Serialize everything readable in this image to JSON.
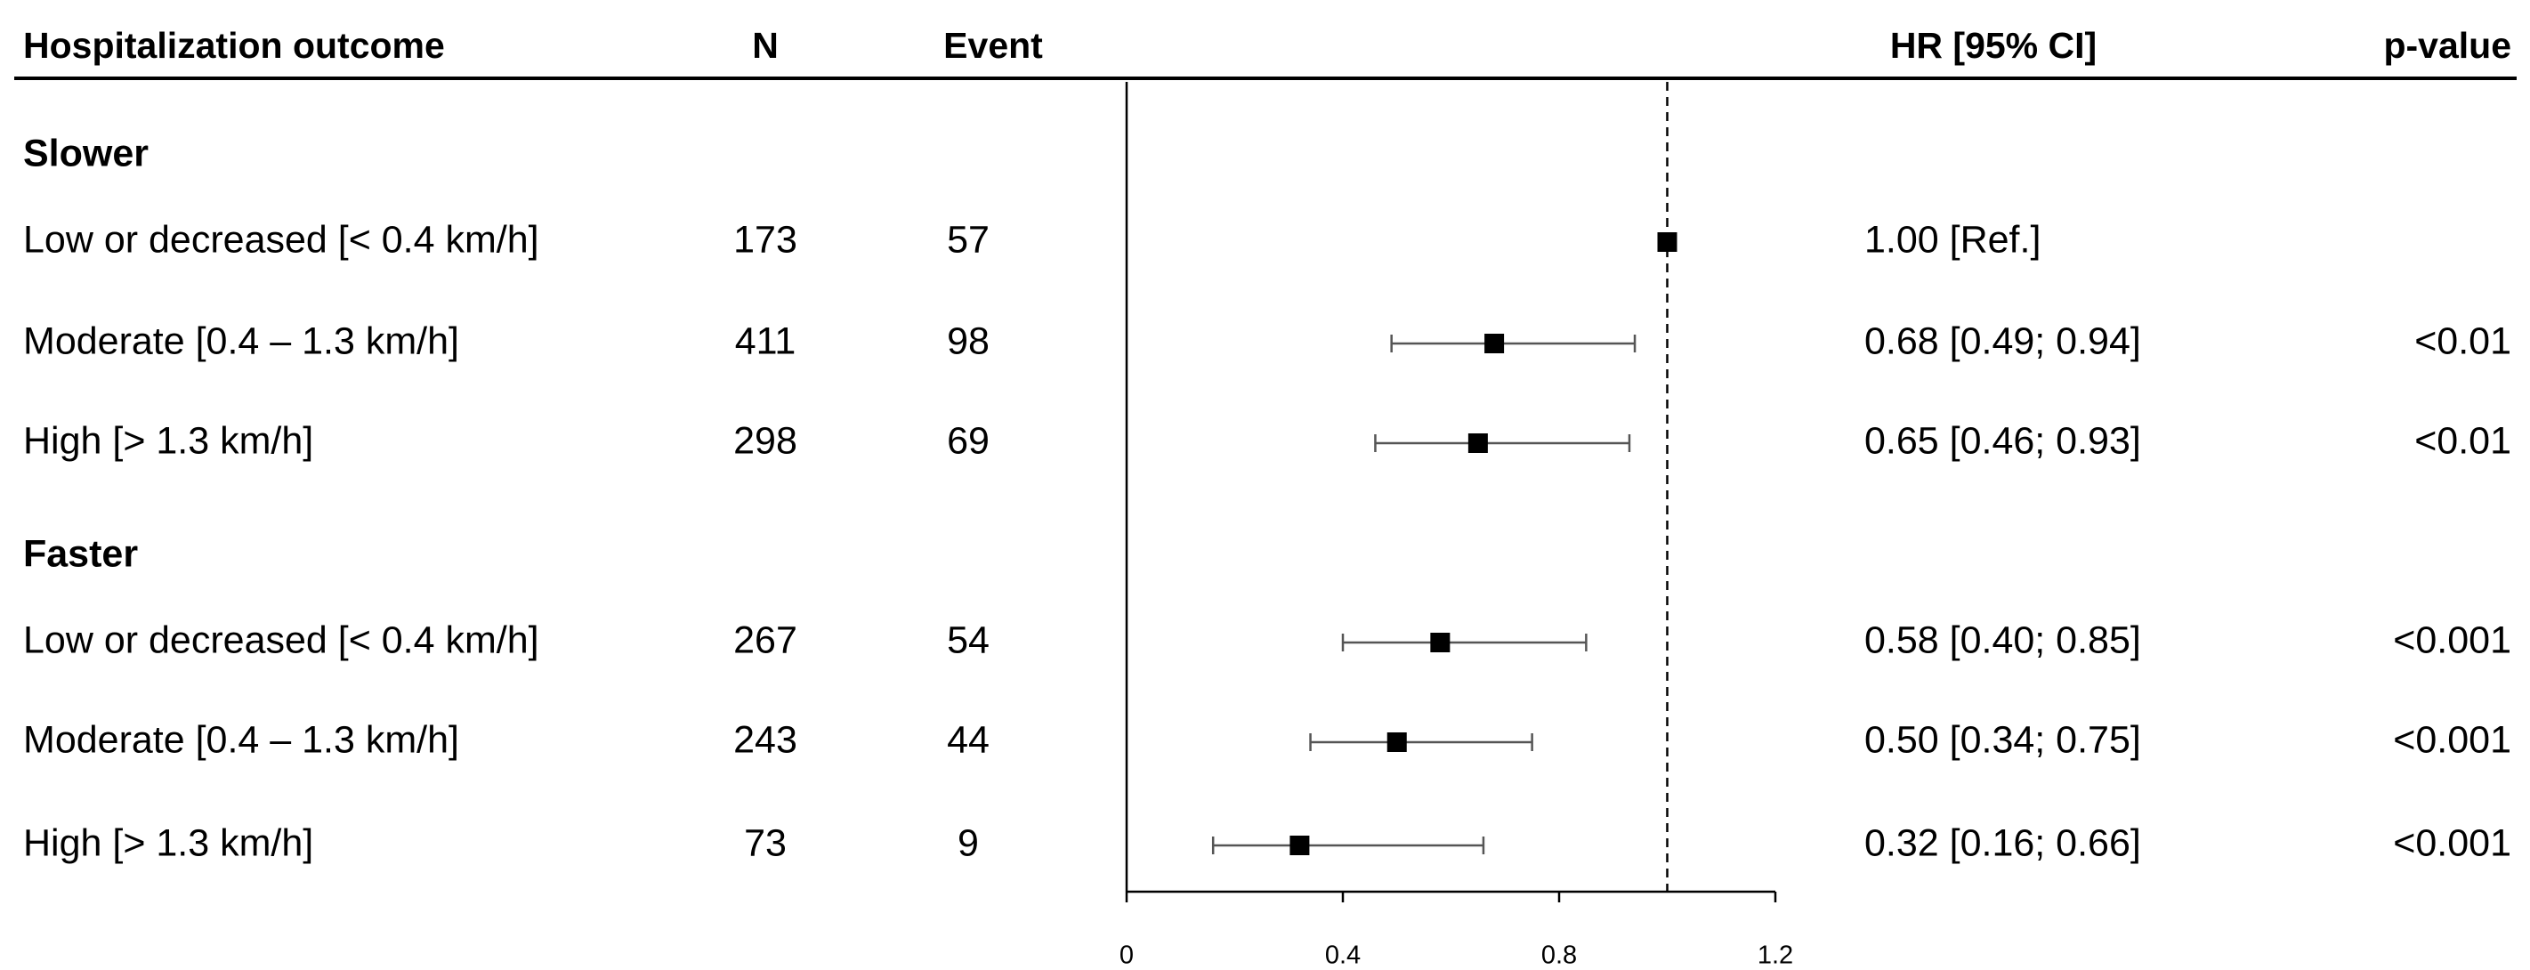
{
  "chart_data": {
    "type": "forest",
    "title": "",
    "columns": {
      "outcome": "Hospitalization outcome",
      "n": "N",
      "event": "Event",
      "hr": "HR [95% CI]",
      "p": "p-value"
    },
    "groups": [
      {
        "label": "Slower",
        "rows": [
          {
            "label": "Low or decreased [< 0.4 km/h]",
            "n": "173",
            "event": "57",
            "hr_text": "1.00 [Ref.]",
            "p": "",
            "hr": 1.0,
            "lo": null,
            "hi": null
          },
          {
            "label": "Moderate [0.4 – 1.3 km/h]",
            "n": "411",
            "event": "98",
            "hr_text": "0.68 [0.49; 0.94]",
            "p": "<0.01",
            "hr": 0.68,
            "lo": 0.49,
            "hi": 0.94
          },
          {
            "label": "High [> 1.3 km/h]",
            "n": "298",
            "event": "69",
            "hr_text": "0.65 [0.46; 0.93]",
            "p": "<0.01",
            "hr": 0.65,
            "lo": 0.46,
            "hi": 0.93
          }
        ]
      },
      {
        "label": "Faster",
        "rows": [
          {
            "label": "Low or decreased [< 0.4 km/h]",
            "n": "267",
            "event": "54",
            "hr_text": "0.58 [0.40; 0.85]",
            "p": "<0.001",
            "hr": 0.58,
            "lo": 0.4,
            "hi": 0.85
          },
          {
            "label": "Moderate [0.4 – 1.3 km/h]",
            "n": "243",
            "event": "44",
            "hr_text": "0.50 [0.34; 0.75]",
            "p": "<0.001",
            "hr": 0.5,
            "lo": 0.34,
            "hi": 0.75
          },
          {
            "label": "High [> 1.3 km/h]",
            "n": "73",
            "event": "9",
            "hr_text": "0.32 [0.16; 0.66]",
            "p": "<0.001",
            "hr": 0.32,
            "lo": 0.16,
            "hi": 0.66
          }
        ]
      }
    ],
    "xlim": [
      0,
      1.2
    ],
    "xticks": [
      0,
      0.4,
      0.8,
      1.2
    ],
    "xtick_labels": [
      "0",
      "0.4",
      "0.8",
      "1.2"
    ],
    "reference_line": 1,
    "colors": {
      "marker": "#000000",
      "ci": "#555555",
      "axis": "#000000"
    }
  }
}
